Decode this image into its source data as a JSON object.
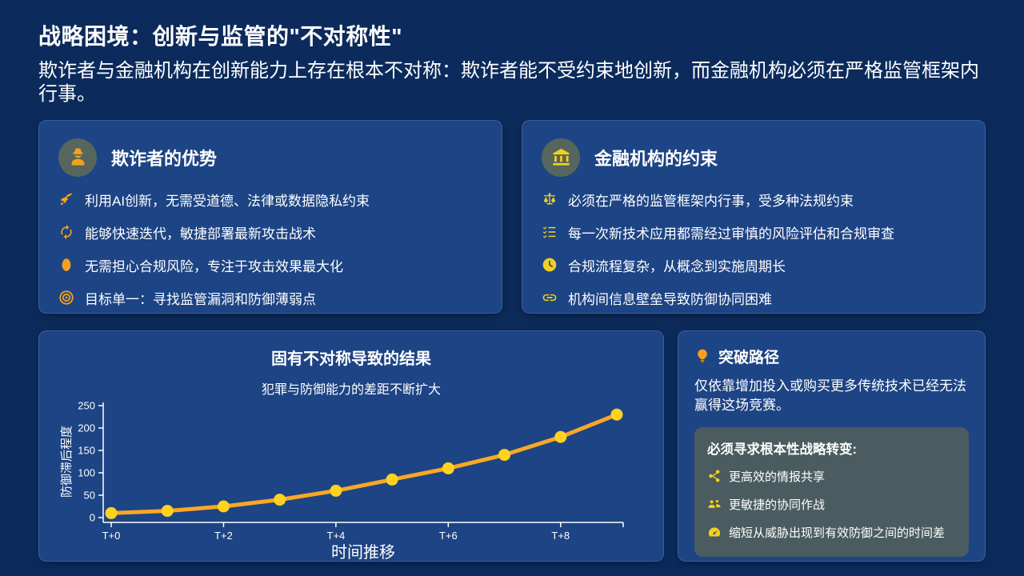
{
  "page": {
    "title": "战略困境：创新与监管的\"不对称性\"",
    "subtitle": "欺诈者与金融机构在创新能力上存在根本不对称：欺诈者能不受约束地创新，而金融机构必须在严格监管框架内行事。"
  },
  "colors": {
    "background": "#0c2b5c",
    "card_background": "#1d4484",
    "strategy_box_background": "#4a5c5f",
    "badge_background": "#57665c",
    "orange_accent": "#f5a11e",
    "yellow_accent": "#f2d01f",
    "chart_line": "#f9a825",
    "chart_marker": "#ffd21f"
  },
  "fraudsters_card": {
    "icon": "user-secret-icon",
    "title": "欺诈者的优势",
    "items": [
      {
        "icon": "rocket-icon",
        "text": "利用AI创新，无需受道德、法律或数据隐私约束"
      },
      {
        "icon": "sync-icon",
        "text": "能够快速迭代，敏捷部署最新攻击战术"
      },
      {
        "icon": "egg-icon",
        "text": "无需担心合规风险，专注于攻击效果最大化"
      },
      {
        "icon": "bullseye-icon",
        "text": "目标单一：寻找监管漏洞和防御薄弱点"
      }
    ]
  },
  "institutions_card": {
    "icon": "bank-icon",
    "title": "金融机构的约束",
    "items": [
      {
        "icon": "balance-scale-icon",
        "text": "必须在严格的监管框架内行事，受多种法规约束"
      },
      {
        "icon": "tasks-icon",
        "text": "每一次新技术应用都需经过审慎的风险评估和合规审查"
      },
      {
        "icon": "clock-icon",
        "text": "合规流程复杂，从概念到实施周期长"
      },
      {
        "icon": "link-icon",
        "text": "机构间信息壁垒导致防御协同困难"
      }
    ]
  },
  "chart_card": {
    "title": "固有不对称导致的结果",
    "subtitle": "犯罪与防御能力的差距不断扩大"
  },
  "chart_data": {
    "type": "line",
    "title": "固有不对称导致的结果",
    "subtitle": "犯罪与防御能力的差距不断扩大",
    "categories": [
      "T+0",
      "T+1",
      "T+2",
      "T+3",
      "T+4",
      "T+5",
      "T+6",
      "T+7",
      "T+8",
      "T+9"
    ],
    "values": [
      10,
      15,
      25,
      40,
      60,
      85,
      110,
      140,
      180,
      230
    ],
    "x_ticks": [
      {
        "index": 0,
        "label": "T+0"
      },
      {
        "index": 2,
        "label": "T+2"
      },
      {
        "index": 4,
        "label": "T+4"
      },
      {
        "index": 6,
        "label": "T+6"
      },
      {
        "index": 8,
        "label": "T+8"
      }
    ],
    "y_ticks": [
      0,
      50,
      100,
      150,
      200,
      250
    ],
    "ylim": [
      0,
      250
    ],
    "xlabel": "时间推移",
    "ylabel": "防御滞后程度",
    "grid": false,
    "legend": "none",
    "line_color": "#f9a825",
    "marker_color": "#ffd21f"
  },
  "breakthrough_card": {
    "icon": "lightbulb-icon",
    "title": "突破路径",
    "paragraph": "仅依靠增加投入或购买更多传统技术已经无法赢得这场竞赛。",
    "strategy_box": {
      "title": "必须寻求根本性战略转变:",
      "items": [
        {
          "icon": "share-nodes-icon",
          "text": "更高效的情报共享"
        },
        {
          "icon": "users-icon",
          "text": "更敏捷的协同作战"
        },
        {
          "icon": "gauge-icon",
          "text": "缩短从威胁出现到有效防御之间的时间差"
        }
      ]
    }
  }
}
